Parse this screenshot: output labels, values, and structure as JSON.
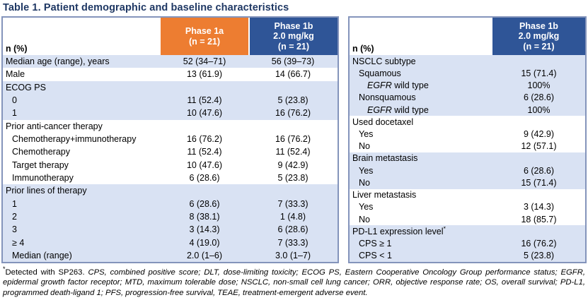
{
  "title": "Table 1. Patient demographic and baseline characteristics",
  "colors": {
    "accent_orange": "#ED7D31",
    "accent_blue": "#2F5597",
    "row_shade_blue": "#D9E2F3",
    "title_navy": "#1F3864",
    "table_border": "#8494BB"
  },
  "left_table": {
    "header": {
      "label": "n (%)",
      "phase1a": "Phase 1a\n(n = 21)",
      "phase1b": "Phase 1b\n2.0 mg/kg\n(n = 21)"
    },
    "rows": [
      {
        "label": "Median age (range), years",
        "indent": 0,
        "v1": "52 (34–71)",
        "v2": "56 (39–73)",
        "shade": true
      },
      {
        "label": "Male",
        "indent": 0,
        "v1": "13 (61.9)",
        "v2": "14 (66.7)",
        "shade": false
      },
      {
        "label": "ECOG PS",
        "indent": 0,
        "v1": "",
        "v2": "",
        "shade": true
      },
      {
        "label": "0",
        "indent": 1,
        "v1": "11 (52.4)",
        "v2": "5 (23.8)",
        "shade": true
      },
      {
        "label": "1",
        "indent": 1,
        "v1": "10 (47.6)",
        "v2": "16 (76.2)",
        "shade": true
      },
      {
        "label": "Prior anti-cancer therapy",
        "indent": 0,
        "v1": "",
        "v2": "",
        "shade": false
      },
      {
        "label": "Chemotherapy+immunotherapy",
        "indent": 1,
        "v1": "16 (76.2)",
        "v2": "16 (76.2)",
        "shade": false
      },
      {
        "label": "Chemotherapy",
        "indent": 1,
        "v1": "11 (52.4)",
        "v2": "11 (52.4)",
        "shade": false
      },
      {
        "label": "Target therapy",
        "indent": 1,
        "v1": "10 (47.6)",
        "v2": "9 (42.9)",
        "shade": false
      },
      {
        "label": "Immunotherapy",
        "indent": 1,
        "v1": "6 (28.6)",
        "v2": "5 (23.8)",
        "shade": false
      },
      {
        "label": "Prior lines of therapy",
        "indent": 0,
        "v1": "",
        "v2": "",
        "shade": true
      },
      {
        "label": "1",
        "indent": 1,
        "v1": "6 (28.6)",
        "v2": "7 (33.3)",
        "shade": true
      },
      {
        "label": "2",
        "indent": 1,
        "v1": "8 (38.1)",
        "v2": "1 (4.8)",
        "shade": true
      },
      {
        "label": "3",
        "indent": 1,
        "v1": "3 (14.3)",
        "v2": "6 (28.6)",
        "shade": true
      },
      {
        "label": "≥ 4",
        "indent": 1,
        "v1": "4 (19.0)",
        "v2": "7 (33.3)",
        "shade": true
      },
      {
        "label": "Median (range)",
        "indent": 1,
        "v1": "2.0 (1–6)",
        "v2": "3.0 (1–7)",
        "shade": true
      }
    ]
  },
  "right_table": {
    "header": {
      "label": "n (%)",
      "phase1b": "Phase 1b\n2.0 mg/kg\n(n = 21)"
    },
    "rows": [
      {
        "label": "NSCLC subtype",
        "indent": 0,
        "v1": "",
        "shade": true
      },
      {
        "label": "Squamous",
        "indent": 1,
        "v1": "15 (71.4)",
        "shade": true
      },
      {
        "label_parts": [
          {
            "text": "EGFR",
            "italic": true
          },
          {
            "text": " wild type",
            "italic": false
          }
        ],
        "indent": 2,
        "v1": "100%",
        "shade": true
      },
      {
        "label": "Nonsquamous",
        "indent": 1,
        "v1": "6 (28.6)",
        "shade": true
      },
      {
        "label_parts": [
          {
            "text": "EGFR",
            "italic": true
          },
          {
            "text": " wild type",
            "italic": false
          }
        ],
        "indent": 2,
        "v1": "100%",
        "shade": true
      },
      {
        "label": "Used docetaxel",
        "indent": 0,
        "v1": "",
        "shade": false
      },
      {
        "label": "Yes",
        "indent": 1,
        "v1": "9 (42.9)",
        "shade": false
      },
      {
        "label": "No",
        "indent": 1,
        "v1": "12 (57.1)",
        "shade": false
      },
      {
        "label": "Brain metastasis",
        "indent": 0,
        "v1": "",
        "shade": true
      },
      {
        "label": "Yes",
        "indent": 1,
        "v1": "6 (28.6)",
        "shade": true
      },
      {
        "label": "No",
        "indent": 1,
        "v1": "15 (71.4)",
        "shade": true
      },
      {
        "label": "Liver metastasis",
        "indent": 0,
        "v1": "",
        "shade": false
      },
      {
        "label": "Yes",
        "indent": 1,
        "v1": "3 (14.3)",
        "shade": false
      },
      {
        "label": "No",
        "indent": 1,
        "v1": "18 (85.7)",
        "shade": false
      },
      {
        "label": "PD-L1 expression level",
        "sup": "*",
        "indent": 0,
        "v1": "",
        "shade": true
      },
      {
        "label": "CPS ≥ 1",
        "indent": 1,
        "v1": "16 (76.2)",
        "shade": true
      },
      {
        "label": "CPS < 1",
        "indent": 1,
        "v1": "5 (23.8)",
        "shade": true
      }
    ]
  },
  "footnote": {
    "marker": "*",
    "lead": "Detected with SP263. ",
    "abbreviations": "CPS, combined positive score; DLT, dose-limiting toxicity; ECOG PS, Eastern Cooperative Oncology Group performance status; EGFR, epidermal growth factor receptor; MTD, maximum tolerable dose; NSCLC, non-small cell lung cancer; ORR, objective response rate; OS, overall survival; PD-L1, programmed death-ligand 1; PFS, progression-free survival, TEAE, treatment-emergent adverse event."
  }
}
